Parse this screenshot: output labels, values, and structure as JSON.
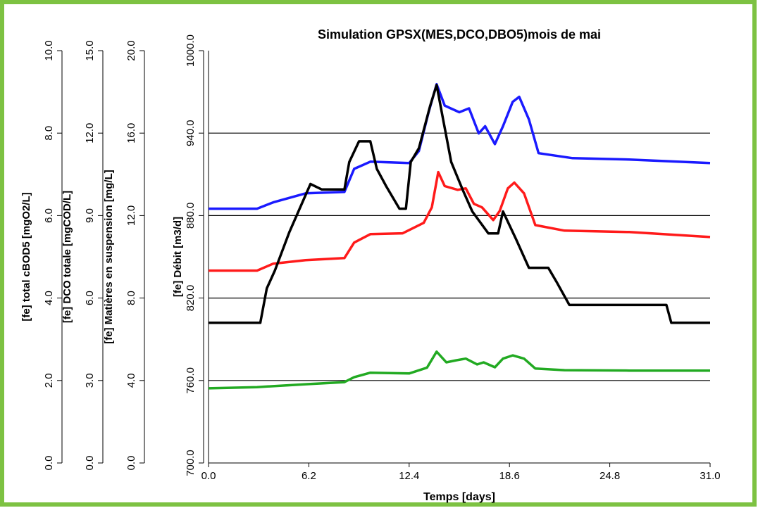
{
  "chart_data": {
    "type": "line",
    "title": "Simulation GPSX(MES,DCO,DBO5)mois de mai",
    "xlabel": "Temps [days]",
    "xlim": [
      0,
      31
    ],
    "xticks": [
      {
        "value": 0,
        "label": "0.0"
      },
      6.2,
      12.4,
      18.6,
      24.8,
      {
        "value": 31,
        "label": "31.0"
      }
    ],
    "grid": true,
    "y_axes": [
      {
        "label": "[fe] total cBOD5 [mgO2/L]",
        "color": "#22aa22",
        "lim": [
          0,
          10
        ],
        "ticks": [
          {
            "value": 0,
            "label": "0.0"
          },
          {
            "value": 2,
            "label": "2.0"
          },
          {
            "value": 4,
            "label": "4.0"
          },
          {
            "value": 6,
            "label": "6.0"
          },
          {
            "value": 8,
            "label": "8.0"
          },
          {
            "value": 10,
            "label": "10.0"
          }
        ]
      },
      {
        "label": "[fe] DCO totale [mgCOD/L]",
        "color": "#1a1aff",
        "lim": [
          0,
          15
        ],
        "ticks": [
          {
            "value": 0,
            "label": "0.0"
          },
          {
            "value": 3,
            "label": "3.0"
          },
          {
            "value": 6,
            "label": "6.0"
          },
          {
            "value": 9,
            "label": "9.0"
          },
          {
            "value": 12,
            "label": "12.0"
          },
          {
            "value": 15,
            "label": "15.0"
          }
        ]
      },
      {
        "label": "[fe] Matières en suspension [mg/L]",
        "color": "#ff1a1a",
        "lim": [
          0,
          20
        ],
        "ticks": [
          {
            "value": 0,
            "label": "0.0"
          },
          {
            "value": 4,
            "label": "4.0"
          },
          {
            "value": 8,
            "label": "8.0"
          },
          {
            "value": 12,
            "label": "12.0"
          },
          {
            "value": 16,
            "label": "16.0"
          },
          {
            "value": 20,
            "label": "20.0"
          }
        ]
      },
      {
        "label": "[fe] Débit [m3/d]",
        "color": "#000000",
        "lim": [
          700,
          1000
        ],
        "ticks": [
          {
            "value": 700,
            "label": "700.0"
          },
          {
            "value": 760,
            "label": "760.0"
          },
          {
            "value": 820,
            "label": "820.0"
          },
          {
            "value": 880,
            "label": "880.0"
          },
          {
            "value": 940,
            "label": "940.0"
          },
          {
            "value": 1000,
            "label": "1000.0"
          }
        ]
      }
    ],
    "series": [
      {
        "axis": 0,
        "color": "#22aa22",
        "x": [
          0,
          3,
          6,
          8.4,
          9,
          10,
          12.4,
          13.5,
          14.1,
          14.7,
          15.3,
          15.9,
          16.6,
          17,
          17.7,
          18.2,
          18.8,
          19.5,
          20.2,
          22,
          26,
          31
        ],
        "values": [
          1.81,
          1.84,
          1.91,
          1.96,
          2.08,
          2.19,
          2.17,
          2.31,
          2.7,
          2.44,
          2.49,
          2.53,
          2.39,
          2.44,
          2.32,
          2.53,
          2.61,
          2.53,
          2.29,
          2.25,
          2.24,
          2.24
        ]
      },
      {
        "axis": 1,
        "color": "#1a1aff",
        "x": [
          0,
          3,
          4,
          6,
          8.4,
          9,
          10,
          12.4,
          13,
          13.6,
          14.1,
          14.6,
          15.5,
          16.1,
          16.7,
          17.1,
          17.7,
          18.2,
          18.8,
          19.2,
          19.8,
          20.4,
          22.5,
          26,
          31
        ],
        "values": [
          9.25,
          9.25,
          9.48,
          9.81,
          9.86,
          10.7,
          10.96,
          10.91,
          11.35,
          12.76,
          13.78,
          13,
          12.76,
          12.9,
          11.99,
          12.25,
          11.6,
          12.25,
          13.14,
          13.32,
          12.5,
          11.27,
          11.09,
          11.04,
          10.91
        ]
      },
      {
        "axis": 2,
        "color": "#ff1a1a",
        "x": [
          0,
          3,
          4,
          6,
          8.4,
          9,
          10,
          12,
          13.3,
          13.8,
          14.2,
          14.6,
          15.4,
          15.9,
          16.4,
          16.9,
          17.6,
          18,
          18.5,
          18.9,
          19.5,
          20.2,
          22,
          26,
          31
        ],
        "values": [
          9.33,
          9.33,
          9.67,
          9.84,
          9.94,
          10.69,
          11.1,
          11.14,
          11.65,
          12.4,
          14.11,
          13.43,
          13.25,
          13.32,
          12.57,
          12.4,
          11.78,
          12.23,
          13.32,
          13.6,
          13.08,
          11.54,
          11.27,
          11.2,
          10.96
        ]
      },
      {
        "axis": 3,
        "color": "#000000",
        "x": [
          0,
          3.2,
          3.6,
          4.1,
          5,
          6.3,
          7,
          8.4,
          8.7,
          9.3,
          10,
          10.4,
          11,
          11.8,
          12.2,
          12.5,
          13,
          13.7,
          14.1,
          14.5,
          15,
          15.7,
          16.3,
          17.3,
          17.9,
          18.2,
          19,
          19.8,
          21,
          21.5,
          22.3,
          28.3,
          28.6,
          31
        ],
        "values": [
          802,
          802,
          827,
          840,
          868,
          903,
          899,
          899,
          919,
          934,
          934,
          914,
          901,
          885,
          885,
          919,
          929,
          960,
          975,
          950,
          919,
          899,
          883,
          867,
          867,
          883,
          863,
          842,
          842,
          832,
          815,
          815,
          802,
          802
        ]
      }
    ]
  }
}
